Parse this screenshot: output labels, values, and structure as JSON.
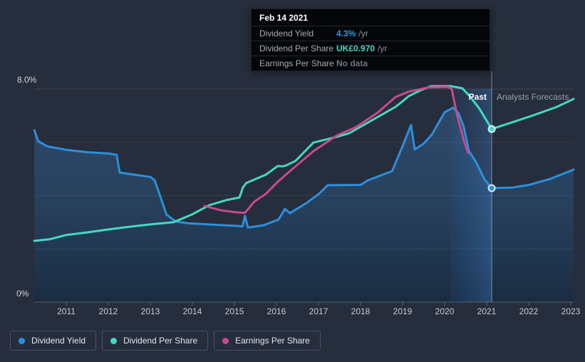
{
  "tooltip": {
    "date": "Feb 14 2021",
    "rows": [
      {
        "label": "Dividend Yield",
        "value": "4.3%",
        "suffix": "/yr",
        "value_color": "#2e9ae4"
      },
      {
        "label": "Dividend Per Share",
        "value": "UK£0.970",
        "suffix": "/yr",
        "value_color": "#46d8c1"
      },
      {
        "label": "Earnings Per Share",
        "value": "No data",
        "suffix": "",
        "value_color": "#70767f"
      }
    ]
  },
  "axis": {
    "y_top_label": "8.0%",
    "y_bottom_label": "0%",
    "years": [
      2011,
      2012,
      2013,
      2014,
      2015,
      2016,
      2017,
      2018,
      2019,
      2020,
      2021,
      2022,
      2023
    ]
  },
  "annotations": {
    "past": "Past",
    "forecast": "Analysts Forecasts"
  },
  "legend": {
    "items": [
      {
        "label": "Dividend Yield",
        "color": "#2d8fdc"
      },
      {
        "label": "Dividend Per Share",
        "color": "#46d8c1"
      },
      {
        "label": "Earnings Per Share",
        "color": "#c9498f"
      }
    ]
  },
  "colors": {
    "background": "#262d3c",
    "grid": "rgba(255,255,255,0.07)",
    "grid_top": "rgba(255,255,255,0.13)",
    "axis_line": "rgba(255,255,255,0.25)",
    "divider": "rgba(195,205,220,0.55)",
    "marker_ring": "rgba(236,245,250,0.9)"
  },
  "chart_data": {
    "type": "line",
    "title": "Dividend history and forecast",
    "x_range": [
      2010.24,
      2023.07
    ],
    "y_axis": {
      "min": 0,
      "max": 8,
      "unit": "%",
      "labeled_ticks": [
        "0%",
        "8.0%"
      ],
      "gridline_values": [
        2,
        4,
        6,
        8
      ]
    },
    "note": "Dividend Per Share and Earnings Per Share are plotted against an unlabeled per-share scale; their point values below are y-axis-equivalent positions on the 0-8% axis. Tooltip at Feb 14 2021: Dividend Yield 4.3%/yr, Dividend Per Share UK£0.970/yr, Earnings Per Share no data.",
    "divider_year": 2021.12,
    "highlight_band_years": [
      2020.14,
      2021.12
    ],
    "legend_position": "bottom-left",
    "series": [
      {
        "name": "Dividend Yield",
        "color": "#2d8fdc",
        "area_fill": true,
        "points": [
          [
            2010.24,
            6.45
          ],
          [
            2010.33,
            6.05
          ],
          [
            2010.55,
            5.85
          ],
          [
            2011.0,
            5.72
          ],
          [
            2011.5,
            5.63
          ],
          [
            2012.0,
            5.58
          ],
          [
            2012.2,
            5.53
          ],
          [
            2012.27,
            4.87
          ],
          [
            2012.6,
            4.79
          ],
          [
            2013.0,
            4.7
          ],
          [
            2013.1,
            4.58
          ],
          [
            2013.22,
            4.05
          ],
          [
            2013.38,
            3.3
          ],
          [
            2013.6,
            3.03
          ],
          [
            2013.9,
            2.96
          ],
          [
            2014.5,
            2.91
          ],
          [
            2015.1,
            2.86
          ],
          [
            2015.19,
            2.84
          ],
          [
            2015.25,
            3.24
          ],
          [
            2015.32,
            2.8
          ],
          [
            2015.7,
            2.89
          ],
          [
            2016.05,
            3.1
          ],
          [
            2016.2,
            3.5
          ],
          [
            2016.32,
            3.34
          ],
          [
            2016.71,
            3.72
          ],
          [
            2017.0,
            4.05
          ],
          [
            2017.22,
            4.39
          ],
          [
            2018.0,
            4.4
          ],
          [
            2018.17,
            4.57
          ],
          [
            2018.75,
            4.92
          ],
          [
            2019.0,
            5.86
          ],
          [
            2019.2,
            6.65
          ],
          [
            2019.29,
            5.73
          ],
          [
            2019.5,
            5.95
          ],
          [
            2019.7,
            6.3
          ],
          [
            2020.0,
            7.13
          ],
          [
            2020.2,
            7.3
          ],
          [
            2020.33,
            7.1
          ],
          [
            2020.45,
            6.6
          ],
          [
            2020.58,
            5.67
          ],
          [
            2020.75,
            5.25
          ],
          [
            2020.95,
            4.6
          ],
          [
            2021.12,
            4.28
          ]
        ],
        "forecast_points": [
          [
            2021.6,
            4.3
          ],
          [
            2022.0,
            4.4
          ],
          [
            2022.5,
            4.62
          ],
          [
            2023.07,
            4.98
          ]
        ]
      },
      {
        "name": "Dividend Per Share",
        "color": "#46d8c1",
        "area_fill": false,
        "points": [
          [
            2010.24,
            2.3
          ],
          [
            2010.6,
            2.36
          ],
          [
            2011.0,
            2.52
          ],
          [
            2011.5,
            2.62
          ],
          [
            2012.0,
            2.73
          ],
          [
            2012.5,
            2.83
          ],
          [
            2013.0,
            2.92
          ],
          [
            2013.55,
            3.0
          ],
          [
            2014.0,
            3.3
          ],
          [
            2014.4,
            3.64
          ],
          [
            2014.8,
            3.83
          ],
          [
            2015.12,
            3.93
          ],
          [
            2015.2,
            4.3
          ],
          [
            2015.28,
            4.47
          ],
          [
            2015.75,
            4.79
          ],
          [
            2016.03,
            5.11
          ],
          [
            2016.15,
            5.1
          ],
          [
            2016.24,
            5.14
          ],
          [
            2016.45,
            5.3
          ],
          [
            2016.88,
            5.99
          ],
          [
            2017.44,
            6.21
          ],
          [
            2017.73,
            6.34
          ],
          [
            2018.24,
            6.8
          ],
          [
            2018.83,
            7.33
          ],
          [
            2019.0,
            7.54
          ],
          [
            2019.14,
            7.73
          ],
          [
            2019.42,
            7.95
          ],
          [
            2019.68,
            8.11
          ],
          [
            2020.15,
            8.11
          ],
          [
            2020.42,
            8.03
          ],
          [
            2020.6,
            7.73
          ],
          [
            2020.82,
            7.28
          ],
          [
            2021.12,
            6.5
          ]
        ],
        "forecast_points": [
          [
            2021.55,
            6.72
          ],
          [
            2022.1,
            7.01
          ],
          [
            2022.67,
            7.33
          ],
          [
            2023.07,
            7.63
          ]
        ]
      },
      {
        "name": "Earnings Per Share",
        "color": "#c9498f",
        "area_fill": false,
        "points": [
          [
            2014.29,
            3.61
          ],
          [
            2014.68,
            3.45
          ],
          [
            2015.02,
            3.38
          ],
          [
            2015.25,
            3.35
          ],
          [
            2015.47,
            3.77
          ],
          [
            2015.75,
            4.07
          ],
          [
            2016.03,
            4.52
          ],
          [
            2016.32,
            4.92
          ],
          [
            2016.88,
            5.67
          ],
          [
            2017.44,
            6.26
          ],
          [
            2017.9,
            6.58
          ],
          [
            2018.41,
            7.12
          ],
          [
            2018.83,
            7.7
          ],
          [
            2019.14,
            7.9
          ],
          [
            2019.6,
            8.06
          ],
          [
            2020.08,
            8.08
          ],
          [
            2020.17,
            8.0
          ],
          [
            2020.3,
            7.0
          ],
          [
            2020.45,
            6.1
          ],
          [
            2020.56,
            5.6
          ]
        ],
        "forecast_points": []
      }
    ],
    "markers": [
      {
        "series": 0,
        "year": 2021.12,
        "value": 4.28
      },
      {
        "series": 1,
        "year": 2021.12,
        "value": 6.5
      }
    ]
  }
}
